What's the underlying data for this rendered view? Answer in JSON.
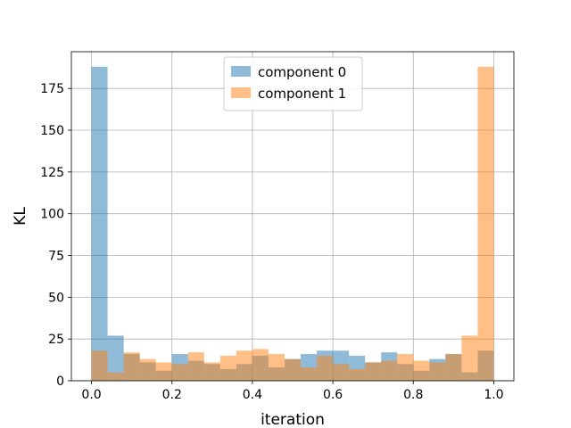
{
  "chart_data": {
    "type": "bar",
    "chart_subtype": "overlapping-histogram",
    "xlabel": "iteration",
    "ylabel": "KL",
    "xlim": [
      -0.05,
      1.05
    ],
    "ylim": [
      0,
      197
    ],
    "xticks": [
      0.0,
      0.2,
      0.4,
      0.6,
      0.8,
      1.0
    ],
    "xtick_labels": [
      "0.0",
      "0.2",
      "0.4",
      "0.6",
      "0.8",
      "1.0"
    ],
    "yticks": [
      0,
      25,
      50,
      75,
      100,
      125,
      150,
      175
    ],
    "ytick_labels": [
      "0",
      "25",
      "50",
      "75",
      "100",
      "125",
      "150",
      "175"
    ],
    "grid": true,
    "legend_position": "top-center",
    "bin_edges": [
      0.0,
      0.04,
      0.08,
      0.12,
      0.16,
      0.2,
      0.24,
      0.28,
      0.32,
      0.36,
      0.4,
      0.44,
      0.48,
      0.52,
      0.56,
      0.6,
      0.64,
      0.68,
      0.72,
      0.76,
      0.8,
      0.84,
      0.88,
      0.92,
      0.96,
      1.0
    ],
    "series": [
      {
        "name": "component 0",
        "color": "#1f77b4",
        "opacity": 0.5,
        "values": [
          188,
          27,
          16,
          11,
          6,
          16,
          12,
          10,
          7,
          10,
          15,
          8,
          13,
          16,
          18,
          18,
          15,
          11,
          17,
          10,
          6,
          13,
          16,
          5,
          18
        ]
      },
      {
        "name": "component 1",
        "color": "#ff7f0e",
        "opacity": 0.5,
        "values": [
          18,
          5,
          17,
          13,
          11,
          10,
          17,
          11,
          15,
          18,
          19,
          16,
          13,
          8,
          15,
          10,
          7,
          11,
          12,
          16,
          12,
          11,
          16,
          27,
          188
        ]
      }
    ]
  }
}
